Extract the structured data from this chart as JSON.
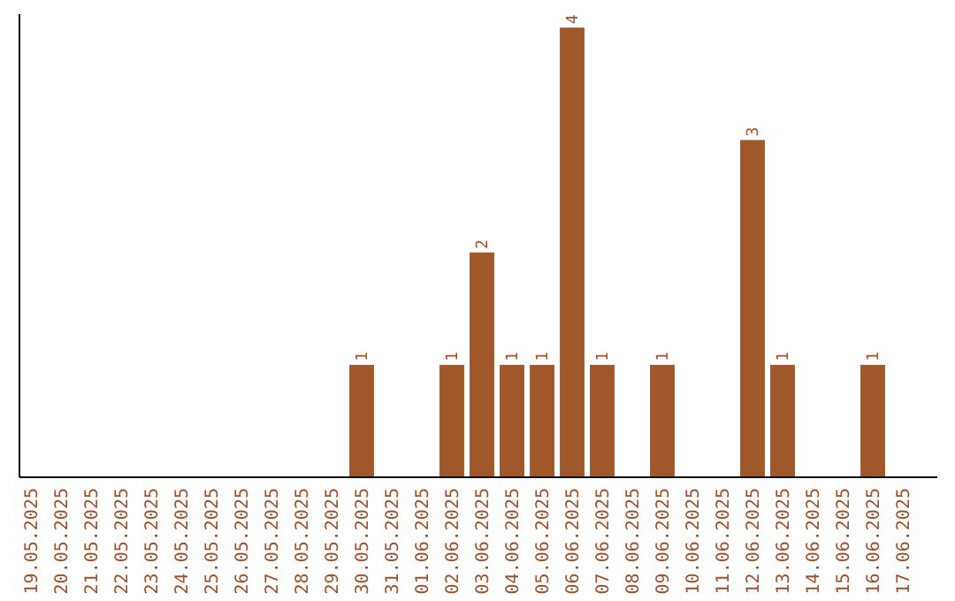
{
  "chart_data": {
    "type": "bar",
    "categories": [
      "19.05.2025",
      "20.05.2025",
      "21.05.2025",
      "22.05.2025",
      "23.05.2025",
      "24.05.2025",
      "25.05.2025",
      "26.05.2025",
      "27.05.2025",
      "28.05.2025",
      "29.05.2025",
      "30.05.2025",
      "31.05.2025",
      "01.06.2025",
      "02.06.2025",
      "03.06.2025",
      "04.06.2025",
      "05.06.2025",
      "06.06.2025",
      "07.06.2025",
      "08.06.2025",
      "09.06.2025",
      "10.06.2025",
      "11.06.2025",
      "12.06.2025",
      "13.06.2025",
      "14.06.2025",
      "15.06.2025",
      "16.06.2025",
      "17.06.2025"
    ],
    "values": [
      0,
      0,
      0,
      0,
      0,
      0,
      0,
      0,
      0,
      0,
      0,
      1,
      0,
      0,
      1,
      2,
      1,
      1,
      4,
      1,
      0,
      1,
      0,
      0,
      3,
      1,
      0,
      0,
      1,
      0
    ],
    "color": "#a0582a",
    "value_labels": [
      null,
      null,
      null,
      null,
      null,
      null,
      null,
      null,
      null,
      null,
      null,
      "1",
      null,
      null,
      "1",
      "2",
      "1",
      "1",
      "4",
      "1",
      null,
      "1",
      null,
      null,
      "3",
      "1",
      null,
      null,
      "1",
      null
    ],
    "tick_labels": "x"
  }
}
